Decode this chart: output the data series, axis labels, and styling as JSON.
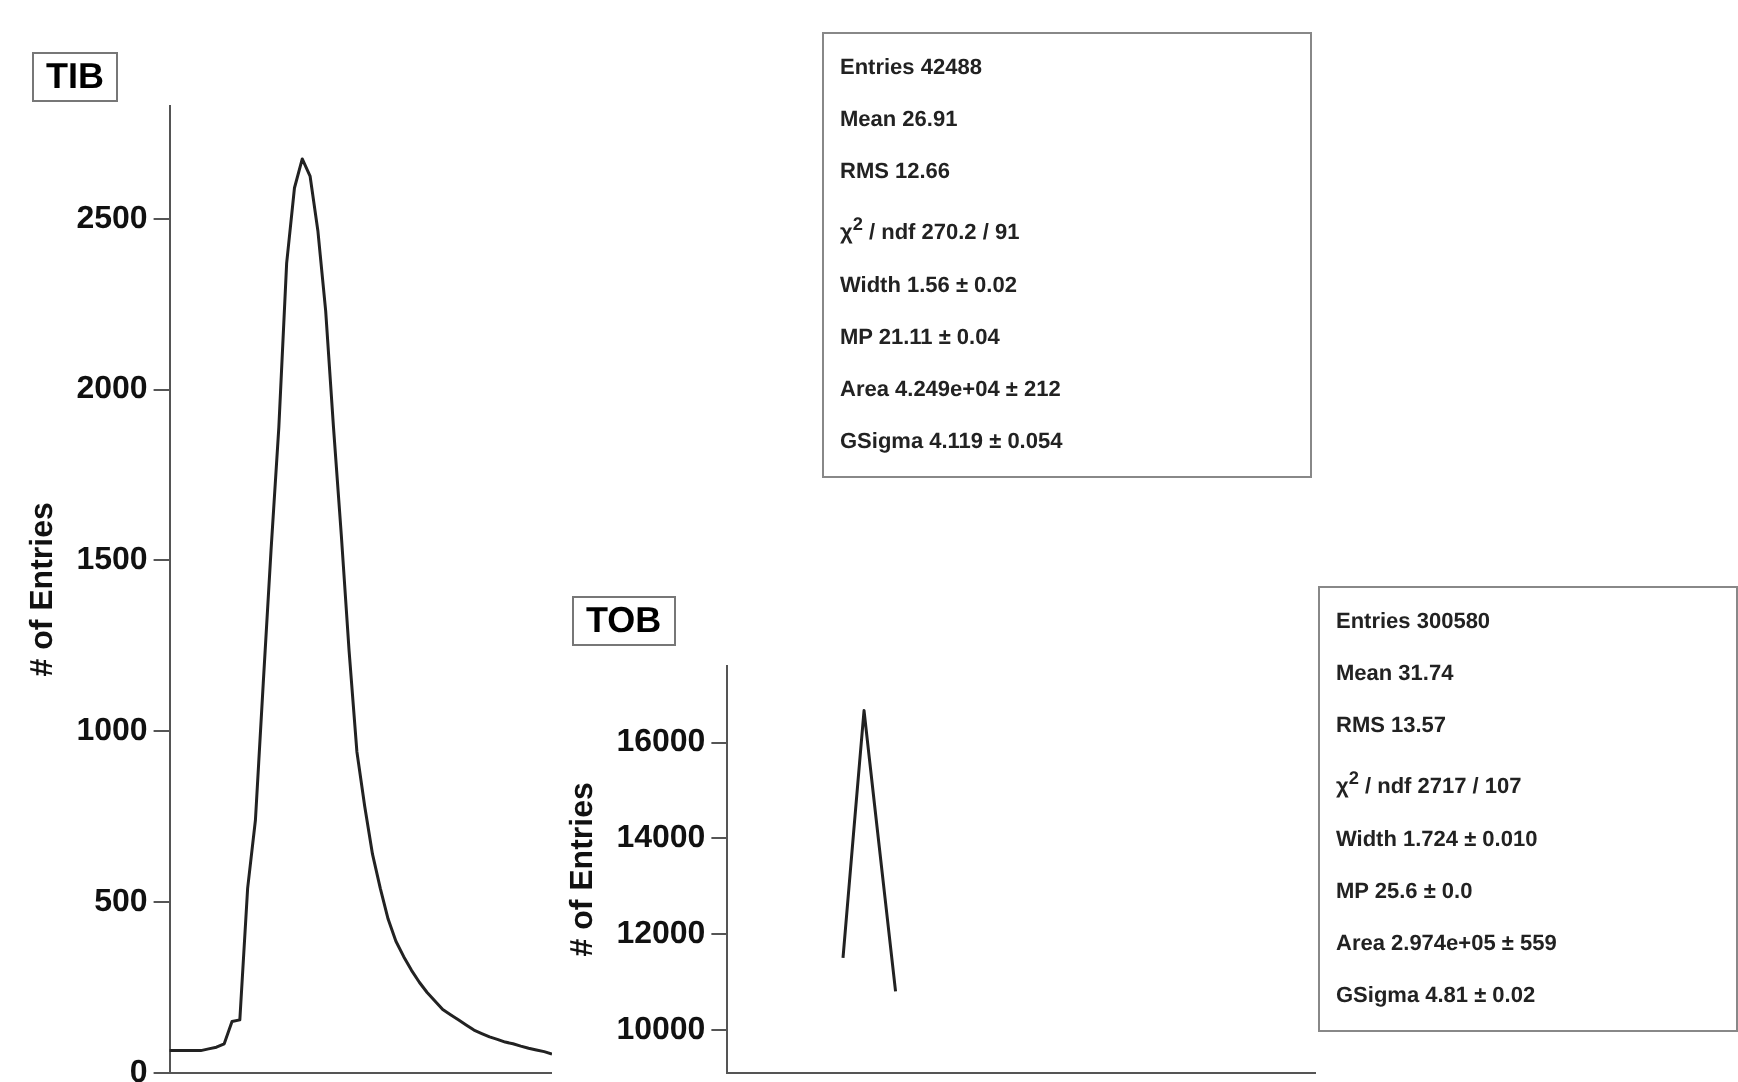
{
  "chart_data": [
    {
      "type": "line",
      "title": "TIB",
      "ylabel": "# of Entries",
      "tick_labels": "y",
      "categories": [
        null,
        null,
        null,
        null,
        null,
        null,
        null,
        null,
        null,
        null,
        null,
        null,
        null,
        null,
        null,
        null,
        null,
        null,
        null,
        null,
        null,
        null,
        null,
        null,
        null,
        null,
        null,
        null,
        null,
        null,
        null,
        null,
        null,
        null,
        null,
        null,
        null,
        null,
        null,
        null,
        null,
        null,
        null,
        null,
        null,
        null,
        null,
        null,
        null,
        null
      ],
      "series": [
        {
          "color": "#222222",
          "values": [
            65,
            65,
            65,
            65,
            65,
            70,
            75,
            85,
            150,
            155,
            540,
            740,
            1140,
            1530,
            1890,
            2370,
            2590,
            2675,
            2625,
            2465,
            2230,
            1890,
            1575,
            1235,
            940,
            780,
            640,
            540,
            450,
            385,
            340,
            300,
            265,
            235,
            210,
            185,
            170,
            155,
            140,
            125,
            115,
            105,
            98,
            90,
            85,
            78,
            72,
            67,
            62,
            55
          ]
        }
      ],
      "ylim": [
        0,
        2830
      ],
      "yticks": [
        0,
        500,
        1000,
        1500,
        2000,
        2500
      ],
      "annotations": [
        "Entries 42488",
        "Mean 26.91",
        "RMS 12.66",
        "χ$^{2}$ / ndf 270.2 / 91",
        "Width 1.56 ± 0.02",
        "MP 21.11 ± 0.04",
        "Area 4.249e+04 ± 212",
        "GSigma 4.119 ± 0.054"
      ]
    },
    {
      "type": "line",
      "title": "TOB",
      "ylabel": "# of Entries",
      "tick_labels": "y",
      "categories": [
        null,
        null,
        null,
        null,
        null,
        null,
        null,
        null,
        null,
        null,
        null,
        null,
        null,
        null,
        null,
        null,
        null,
        null,
        null,
        null,
        null,
        null,
        null,
        null,
        null,
        null,
        null,
        null,
        null,
        null,
        null,
        null,
        null,
        null,
        null,
        null,
        null,
        null,
        null,
        null,
        null,
        null,
        null,
        null,
        null,
        null,
        null,
        null,
        null,
        null,
        null,
        null,
        null,
        null,
        null,
        null,
        null
      ],
      "series": [
        {
          "color": "#222222",
          "values": [
            null,
            null,
            null,
            null,
            null,
            null,
            null,
            null,
            null,
            null,
            null,
            11500,
            14100,
            16670,
            14700,
            12750,
            10800,
            null,
            null,
            null,
            null,
            null,
            null,
            null,
            null,
            null,
            null,
            null,
            null,
            null,
            null,
            null,
            null,
            null,
            null,
            null,
            null,
            null,
            null,
            null,
            null,
            null,
            null,
            null,
            null,
            null,
            null,
            null,
            null,
            null,
            null,
            null,
            null,
            null,
            null,
            null,
            null
          ]
        }
      ],
      "ylim": [
        9100,
        17600
      ],
      "yticks": [
        10000,
        12000,
        14000,
        16000
      ],
      "annotations": [
        "Entries 300580",
        "Mean 31.74",
        "RMS 13.57",
        "χ$^{2}$ / ndf 2717 / 107",
        "Width 1.724 ± 0.010",
        "MP 25.6 ± 0.0",
        "Area 2.974e+05 ± 559",
        "GSigma 4.81 ± 0.02"
      ]
    }
  ]
}
